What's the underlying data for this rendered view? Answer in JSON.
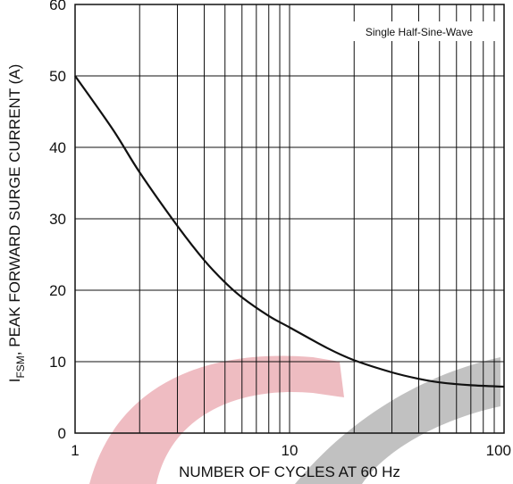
{
  "chart_data": {
    "type": "line",
    "title": "",
    "xlabel": "NUMBER OF CYCLES AT 60 Hz",
    "ylabel_prefix": "I",
    "ylabel_sub": "FSM",
    "ylabel_rest": ", PEAK FORWARD SURGE CURRENT (A)",
    "xscale": "log",
    "xlim": [
      1,
      100
    ],
    "ylim": [
      0,
      60
    ],
    "grid": true,
    "x_ticks": [
      1,
      10,
      100
    ],
    "x_tick_labels": [
      "1",
      "10",
      "100"
    ],
    "y_ticks": [
      0,
      10,
      20,
      30,
      40,
      50,
      60
    ],
    "y_tick_labels": [
      "0",
      "10",
      "20",
      "30",
      "40",
      "50",
      "60"
    ],
    "annotation": "Single Half-Sine-Wave",
    "series": [
      {
        "x": [
          1,
          1.5,
          2,
          3,
          4,
          5,
          6,
          8,
          10,
          15,
          20,
          30,
          40,
          50,
          70,
          100
        ],
        "y": [
          50,
          42.5,
          36.5,
          29,
          24.2,
          21.1,
          19,
          16.4,
          14.8,
          11.9,
          10.2,
          8.5,
          7.6,
          7.1,
          6.7,
          6.5
        ]
      }
    ],
    "colors": {
      "line": "#111111",
      "grid": "#111111",
      "watermark_red": "#e8a0a8",
      "watermark_gray": "#a8a8a8"
    }
  }
}
